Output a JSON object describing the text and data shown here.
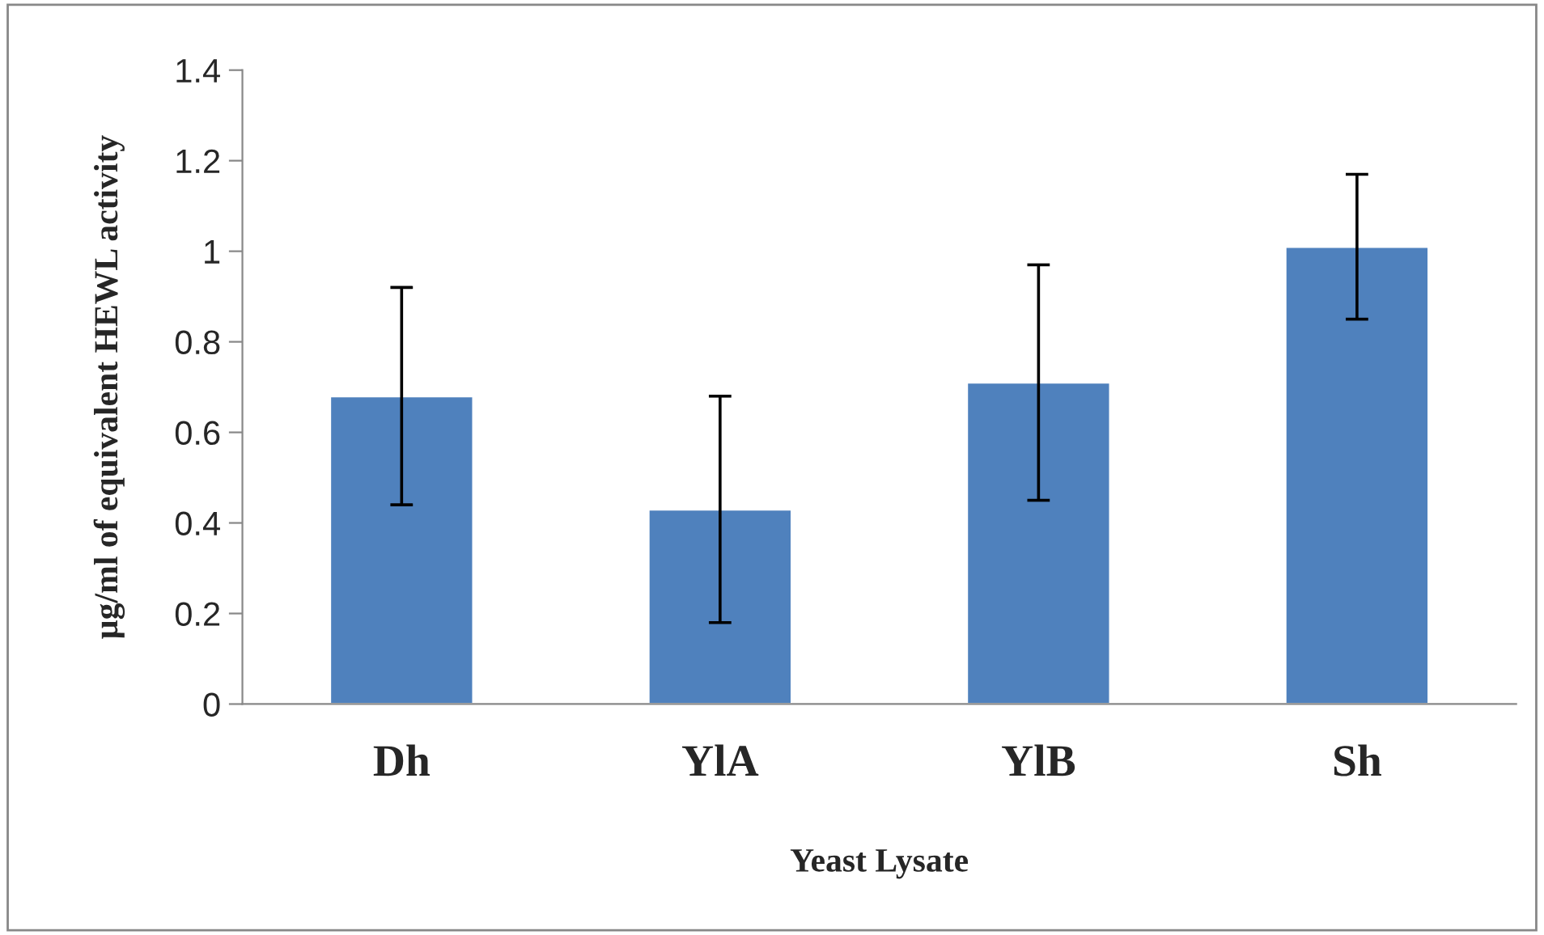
{
  "chart_data": {
    "type": "bar",
    "categories": [
      "Dh",
      "YlA",
      "YlB",
      "Sh"
    ],
    "values": [
      0.68,
      0.43,
      0.71,
      1.01
    ],
    "errors": [
      0.24,
      0.25,
      0.26,
      0.16
    ],
    "color": "#4f81bd",
    "xlabel": "Yeast Lysate",
    "ylabel": "µg/ml of equivalent HEWL activity",
    "ylim": [
      0,
      1.4
    ],
    "yticks": [
      0,
      0.2,
      0.4,
      0.6,
      0.8,
      1,
      1.2,
      1.4
    ],
    "grid": false,
    "legend": false
  }
}
